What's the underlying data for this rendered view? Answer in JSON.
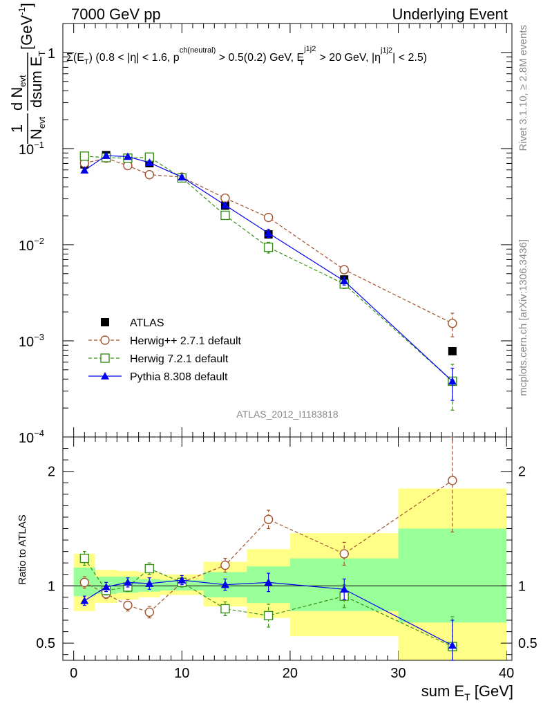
{
  "header": {
    "left": "7000 GeV pp",
    "right": "Underlying Event"
  },
  "side": {
    "rivet": "Rivet 3.1.10, ≥ 2.8M events",
    "mcplots": "mcplots.cern.ch [arXiv:1306.3436]"
  },
  "chart_data": [
    {
      "type": "scatter",
      "title": "Σ(E_T) (0.8 < |η| < 1.6, p^ch(neutral) > 0.5(0.2) GeV, E_T^j1j2 > 20 GeV, |η^j1j2| < 2.5)",
      "title_parts": {
        "a": "Σ(E",
        "a_sub": "T",
        "b": ") (0.8 < |η| < 1.6, p",
        "b_sup": "ch(neutral)",
        "c": " > 0.5(0.2) GeV, E",
        "c_sup": "j1j2",
        "c_sub": "T",
        "d": " > 20 GeV, |η",
        "d_sup": "j1j2",
        "e": "| < 2.5)"
      },
      "ylabel": "1/N_evt dN_evt/dsum E_T [GeV^-1]",
      "ylabel_parts": {
        "one": "1",
        "nevt": "N",
        "nevt_sub": "evt",
        "dn": "d N",
        "dn_sub": "evt",
        "dsum": "dsum E",
        "dsum_sub": "T",
        "unit": "[GeV",
        "unit_sup": "-1",
        "unit_end": "]"
      },
      "yscale": "log",
      "ylim": [
        0.0001,
        2
      ],
      "xlim": [
        -1,
        40.5
      ],
      "ytick_labels": [
        {
          "v": 1,
          "base": "1",
          "exp": ""
        },
        {
          "v": 0.1,
          "base": "10",
          "exp": "−1"
        },
        {
          "v": 0.01,
          "base": "10",
          "exp": "−2"
        },
        {
          "v": 0.001,
          "base": "10",
          "exp": "−3"
        },
        {
          "v": 0.0001,
          "base": "10",
          "exp": "−4"
        }
      ],
      "watermark": "ATLAS_2012_I1183818",
      "legend_position": "lower-left",
      "series": [
        {
          "name": "ATLAS",
          "color": "#000000",
          "marker": "square-filled",
          "x": [
            1,
            3,
            5,
            7,
            10,
            14,
            18,
            25,
            35
          ],
          "y": [
            0.0685,
            0.0855,
            0.0805,
            0.0705,
            0.0495,
            0.0255,
            0.0128,
            0.00435,
            0.00078
          ]
        },
        {
          "name": "Herwig++ 2.7.1 default",
          "color": "#a0522d",
          "marker": "circle-open",
          "dash": "5,3",
          "x": [
            1,
            3,
            5,
            7,
            10,
            14,
            18,
            25,
            35
          ],
          "y": [
            0.0705,
            0.0795,
            0.0665,
            0.0535,
            0.0505,
            0.0305,
            0.0192,
            0.0055,
            0.00152
          ],
          "err": [
            0.003,
            0.003,
            0.003,
            0.002,
            0.002,
            0.0014,
            0.0013,
            0.0005,
            0.00042
          ]
        },
        {
          "name": "Herwig 7.2.1 default",
          "color": "#3a8f1a",
          "marker": "square-open",
          "dash": "5,3",
          "x": [
            1,
            3,
            5,
            7,
            10,
            14,
            18,
            25,
            35
          ],
          "y": [
            0.0835,
            0.0805,
            0.0795,
            0.0815,
            0.0495,
            0.0202,
            0.0094,
            0.0039,
            0.00038
          ],
          "err": [
            0.003,
            0.003,
            0.003,
            0.003,
            0.002,
            0.0012,
            0.0012,
            0.0004,
            0.00019
          ]
        },
        {
          "name": "Pythia 8.308 default",
          "color": "#0000ee",
          "marker": "triangle-filled",
          "x": [
            1,
            3,
            5,
            7,
            10,
            14,
            18,
            25,
            35
          ],
          "y": [
            0.0595,
            0.0845,
            0.0825,
            0.0715,
            0.0505,
            0.0258,
            0.0132,
            0.0042,
            0.00038
          ],
          "err": [
            0.002,
            0.003,
            0.003,
            0.003,
            0.002,
            0.0013,
            0.0013,
            0.0004,
            0.00014
          ]
        }
      ]
    },
    {
      "type": "scatter",
      "ylabel": "Ratio to ATLAS",
      "xlabel": "sum E_T [GeV]",
      "xlabel_parts": {
        "main": "sum E",
        "sub": "T",
        "unit": " [GeV]"
      },
      "ylim": [
        0.35,
        2.3
      ],
      "xlim": [
        -1,
        40.5
      ],
      "xticks": [
        "0",
        "10",
        "20",
        "30",
        "40"
      ],
      "ytick_labels": [
        "0.5",
        "1",
        "2"
      ],
      "bands": {
        "edges": [
          0,
          2,
          4,
          6,
          8,
          12,
          16,
          20,
          30,
          40
        ],
        "yellow": [
          [
            0.78,
            1.28
          ],
          [
            0.85,
            1.14
          ],
          [
            0.88,
            1.13
          ],
          [
            0.9,
            1.12
          ],
          [
            0.92,
            1.1
          ],
          [
            0.82,
            1.21
          ],
          [
            0.72,
            1.32
          ],
          [
            0.56,
            1.46
          ],
          [
            0.28,
            1.85
          ]
        ],
        "green": [
          [
            0.91,
            1.16
          ],
          [
            0.93,
            1.08
          ],
          [
            0.94,
            1.08
          ],
          [
            0.95,
            1.06
          ],
          [
            0.96,
            1.05
          ],
          [
            0.9,
            1.12
          ],
          [
            0.85,
            1.17
          ],
          [
            0.78,
            1.24
          ],
          [
            0.68,
            1.5
          ]
        ]
      },
      "series": [
        {
          "name": "Herwig++ 2.7.1 default",
          "color": "#a0522d",
          "marker": "circle-open",
          "dash": "5,3",
          "x": [
            1,
            3,
            5,
            7,
            10,
            14,
            18,
            25,
            35
          ],
          "y": [
            1.03,
            0.93,
            0.83,
            0.77,
            1.03,
            1.18,
            1.58,
            1.28,
            1.92
          ],
          "err": [
            0.05,
            0.04,
            0.05,
            0.05,
            0.04,
            0.06,
            0.08,
            0.1,
            0.45
          ]
        },
        {
          "name": "Herwig 7.2.1 default",
          "color": "#3a8f1a",
          "marker": "square-open",
          "dash": "5,3",
          "x": [
            1,
            3,
            5,
            7,
            10,
            14,
            18,
            25,
            35
          ],
          "y": [
            1.24,
            0.96,
            0.99,
            1.15,
            1.03,
            0.8,
            0.74,
            0.91,
            0.47
          ],
          "err": [
            0.06,
            0.04,
            0.04,
            0.05,
            0.04,
            0.06,
            0.1,
            0.1,
            0.26
          ]
        },
        {
          "name": "Pythia 8.308 default",
          "color": "#0000ee",
          "marker": "triangle-filled",
          "x": [
            1,
            3,
            5,
            7,
            10,
            14,
            18,
            25,
            35
          ],
          "y": [
            0.87,
            0.99,
            1.03,
            1.02,
            1.05,
            1.01,
            1.03,
            0.97,
            0.48
          ],
          "err": [
            0.04,
            0.04,
            0.04,
            0.05,
            0.04,
            0.05,
            0.08,
            0.09,
            0.22
          ]
        }
      ]
    }
  ]
}
